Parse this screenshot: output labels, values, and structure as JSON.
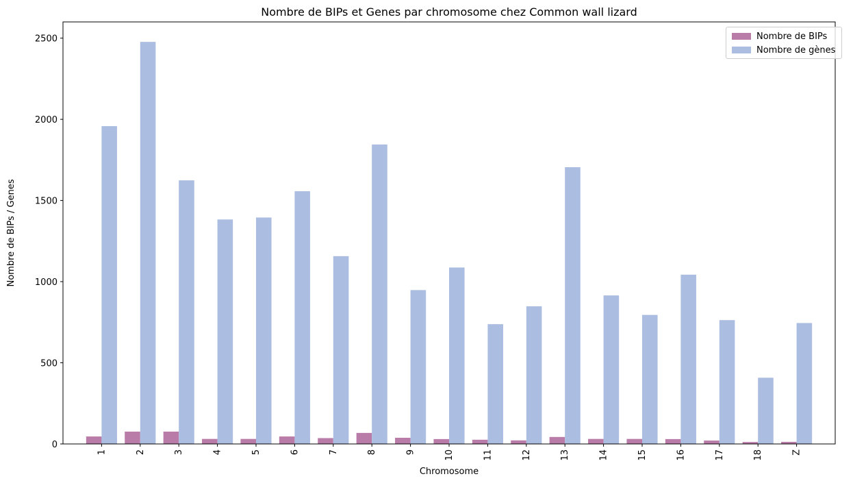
{
  "chart_data": {
    "type": "bar",
    "title": "Nombre de BIPs et Genes par chromosome chez Common wall lizard",
    "xlabel": "Chromosome",
    "ylabel": "Nombre de BIPs / Genes",
    "ylim": [
      0,
      2600
    ],
    "yticks": [
      "0",
      "500",
      "1000",
      "1500",
      "2000",
      "2500"
    ],
    "ytick_values": [
      0,
      500,
      1000,
      1500,
      2000,
      2500
    ],
    "categories": [
      "1",
      "2",
      "3",
      "4",
      "5",
      "6",
      "7",
      "8",
      "9",
      "10",
      "11",
      "12",
      "13",
      "14",
      "15",
      "16",
      "17",
      "18",
      "Z"
    ],
    "series": [
      {
        "name": "Nombre de BIPs",
        "color": "#b97ba8",
        "values": [
          46,
          76,
          76,
          31,
          31,
          46,
          36,
          68,
          38,
          30,
          26,
          22,
          43,
          31,
          31,
          30,
          21,
          12,
          13
        ]
      },
      {
        "name": "Nombre de gènes",
        "color": "#abbde0",
        "values": [
          1958,
          2477,
          1624,
          1383,
          1395,
          1557,
          1157,
          1845,
          948,
          1087,
          738,
          848,
          1705,
          915,
          795,
          1043,
          763,
          408,
          745
        ]
      }
    ],
    "legend_position": "top-right",
    "grid": false
  }
}
